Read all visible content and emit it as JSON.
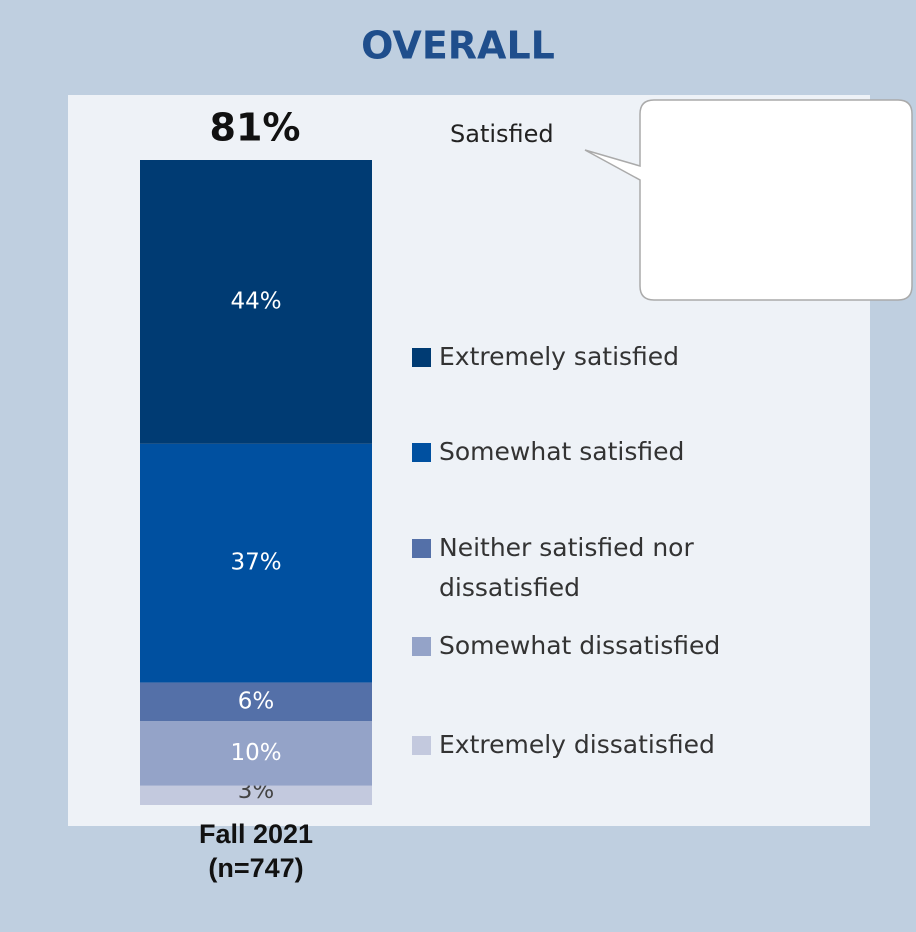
{
  "chart_data": {
    "type": "stacked-bar",
    "title": "OVERALL",
    "annotations": [
      "81%",
      "Satisfied"
    ],
    "categories": [
      "Fall 2021 (n=747)"
    ],
    "series": [
      {
        "name": "Extremely satisfied",
        "color": "#003b73",
        "values": [
          44
        ],
        "value_labels": [
          "44%"
        ]
      },
      {
        "name": "Somewhat satisfied",
        "color": "#0050a0",
        "values": [
          37
        ],
        "value_labels": [
          "37%"
        ]
      },
      {
        "name": "Neither satisfied nor dissatisfied",
        "color": "#5470a8",
        "values": [
          6
        ],
        "value_labels": [
          "6%"
        ]
      },
      {
        "name": "Somewhat dissatisfied",
        "color": "#94a3c8",
        "values": [
          10
        ],
        "value_labels": [
          "10%"
        ]
      },
      {
        "name": "Extremely dissatisfied",
        "color": "#c3c9de",
        "values": [
          3
        ],
        "value_labels": [
          "3%"
        ]
      }
    ],
    "legend": "right"
  }
}
